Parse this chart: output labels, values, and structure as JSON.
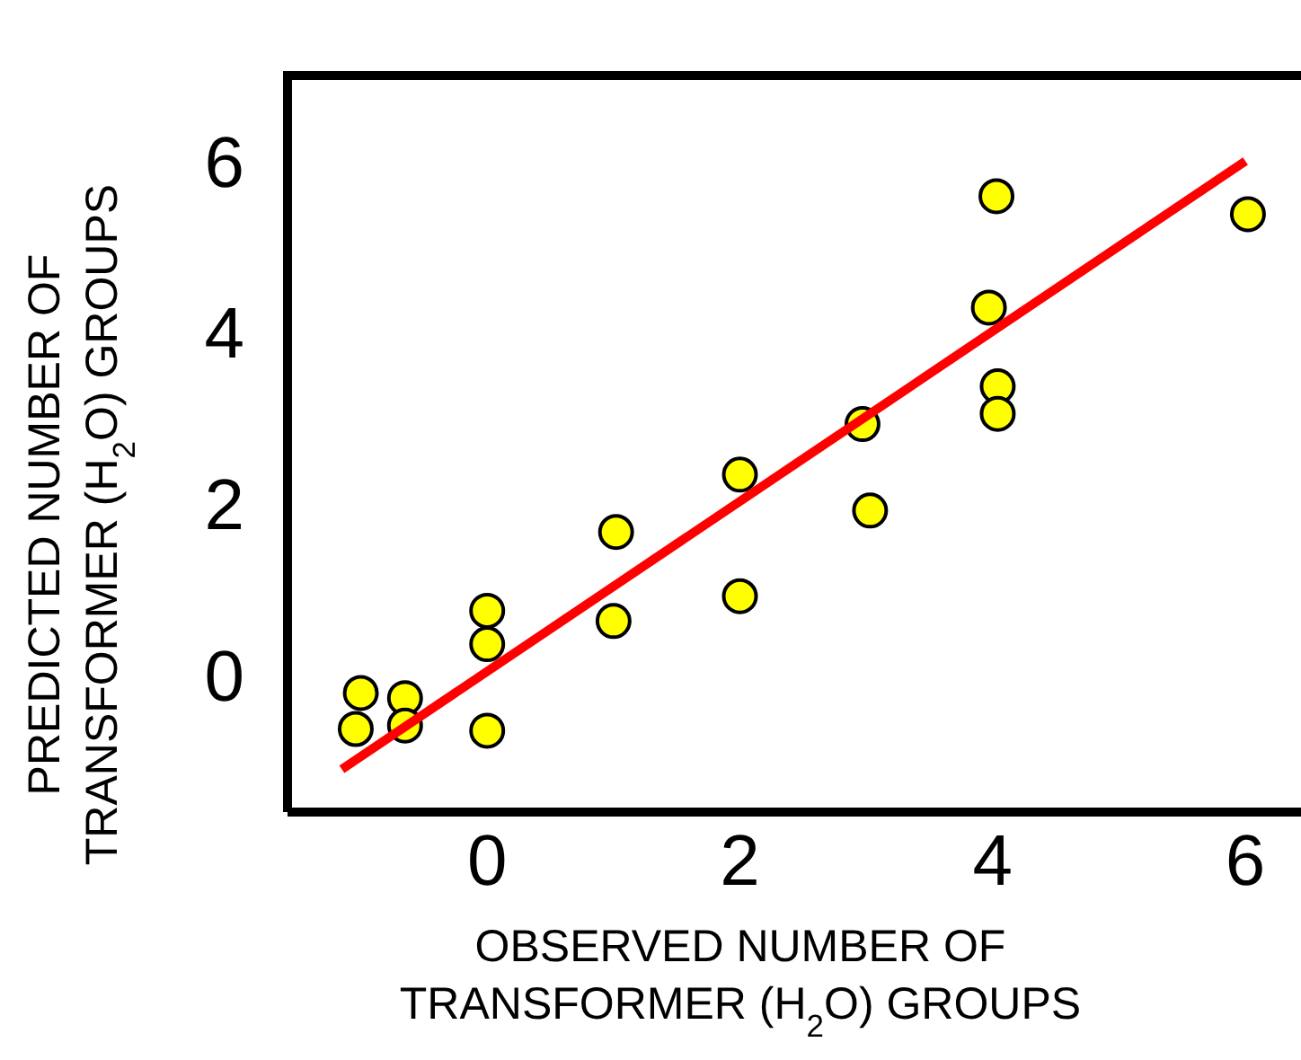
{
  "chart_data": {
    "type": "scatter",
    "xlabel": "OBSERVED NUMBER OF\nTRANSFORMER (H$_{2}$O) GROUPS",
    "ylabel": "PREDICTED NUMBER OF\nTRANSFORMER (H$_{2}$O) GROUPS",
    "xlim": [
      -1.58,
      6.44
    ],
    "xticks": [
      0,
      2,
      4,
      6
    ],
    "ylim": [
      -1.6,
      7.0
    ],
    "yticks": [
      0,
      2,
      4,
      6
    ],
    "marker": "circle",
    "series": [
      {
        "color": "#ffff00",
        "x": [
          -1.0,
          -1.04,
          -0.65,
          -0.65,
          0,
          0,
          0,
          1.02,
          1.0,
          2.0,
          2.0,
          2.97,
          3.03,
          3.97,
          4.03,
          4.04,
          4.04,
          6.02
        ],
        "values": [
          -0.21,
          -0.63,
          -0.27,
          -0.59,
          0.75,
          0.36,
          -0.65,
          1.67,
          0.63,
          2.34,
          0.92,
          2.93,
          1.92,
          4.29,
          5.59,
          3.37,
          3.05,
          5.38
        ]
      },
      {
        "type": "line",
        "marker": "none",
        "color": "#ff0000",
        "x": [
          -1.15,
          6.0
        ],
        "values": [
          -1.1,
          6.0
        ]
      }
    ]
  }
}
